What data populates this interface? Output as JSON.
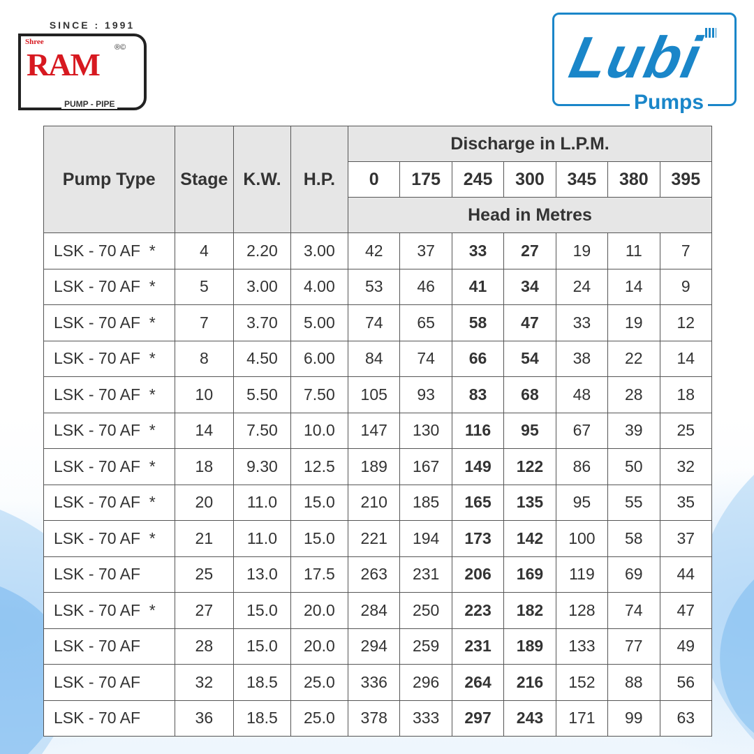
{
  "logos": {
    "ram": {
      "since": "SINCE : 1991",
      "shree": "Shree",
      "name": "RAM",
      "reg": "®©",
      "tagline": "PUMP - PIPE"
    },
    "lubi": {
      "name": "Lubi",
      "tagline": "Pumps",
      "color": "#1a86c9"
    }
  },
  "table": {
    "headers": {
      "pump_type": "Pump Type",
      "stage": "Stage",
      "kw": "K.W.",
      "hp": "H.P.",
      "discharge": "Discharge in L.P.M.",
      "head": "Head in Metres",
      "discharge_values": [
        "0",
        "175",
        "245",
        "300",
        "345",
        "380",
        "395"
      ]
    },
    "rows": [
      {
        "type": "LSK - 70 AF  *",
        "stage": "4",
        "kw": "2.20",
        "hp": "3.00",
        "head": [
          "42",
          "37",
          "33",
          "27",
          "19",
          "11",
          "7"
        ]
      },
      {
        "type": "LSK - 70 AF  *",
        "stage": "5",
        "kw": "3.00",
        "hp": "4.00",
        "head": [
          "53",
          "46",
          "41",
          "34",
          "24",
          "14",
          "9"
        ]
      },
      {
        "type": "LSK - 70 AF  *",
        "stage": "7",
        "kw": "3.70",
        "hp": "5.00",
        "head": [
          "74",
          "65",
          "58",
          "47",
          "33",
          "19",
          "12"
        ]
      },
      {
        "type": "LSK - 70 AF  *",
        "stage": "8",
        "kw": "4.50",
        "hp": "6.00",
        "head": [
          "84",
          "74",
          "66",
          "54",
          "38",
          "22",
          "14"
        ]
      },
      {
        "type": "LSK - 70 AF  *",
        "stage": "10",
        "kw": "5.50",
        "hp": "7.50",
        "head": [
          "105",
          "93",
          "83",
          "68",
          "48",
          "28",
          "18"
        ]
      },
      {
        "type": "LSK - 70 AF  *",
        "stage": "14",
        "kw": "7.50",
        "hp": "10.0",
        "head": [
          "147",
          "130",
          "116",
          "95",
          "67",
          "39",
          "25"
        ]
      },
      {
        "type": "LSK - 70 AF  *",
        "stage": "18",
        "kw": "9.30",
        "hp": "12.5",
        "head": [
          "189",
          "167",
          "149",
          "122",
          "86",
          "50",
          "32"
        ]
      },
      {
        "type": "LSK - 70 AF  *",
        "stage": "20",
        "kw": "11.0",
        "hp": "15.0",
        "head": [
          "210",
          "185",
          "165",
          "135",
          "95",
          "55",
          "35"
        ]
      },
      {
        "type": "LSK - 70 AF  *",
        "stage": "21",
        "kw": "11.0",
        "hp": "15.0",
        "head": [
          "221",
          "194",
          "173",
          "142",
          "100",
          "58",
          "37"
        ]
      },
      {
        "type": "LSK - 70 AF",
        "stage": "25",
        "kw": "13.0",
        "hp": "17.5",
        "head": [
          "263",
          "231",
          "206",
          "169",
          "119",
          "69",
          "44"
        ]
      },
      {
        "type": "LSK - 70 AF  *",
        "stage": "27",
        "kw": "15.0",
        "hp": "20.0",
        "head": [
          "284",
          "250",
          "223",
          "182",
          "128",
          "74",
          "47"
        ]
      },
      {
        "type": "LSK - 70 AF",
        "stage": "28",
        "kw": "15.0",
        "hp": "20.0",
        "head": [
          "294",
          "259",
          "231",
          "189",
          "133",
          "77",
          "49"
        ]
      },
      {
        "type": "LSK - 70 AF",
        "stage": "32",
        "kw": "18.5",
        "hp": "25.0",
        "head": [
          "336",
          "296",
          "264",
          "216",
          "152",
          "88",
          "56"
        ]
      },
      {
        "type": "LSK - 70 AF",
        "stage": "36",
        "kw": "18.5",
        "hp": "25.0",
        "head": [
          "378",
          "333",
          "297",
          "243",
          "171",
          "99",
          "63"
        ]
      }
    ]
  }
}
